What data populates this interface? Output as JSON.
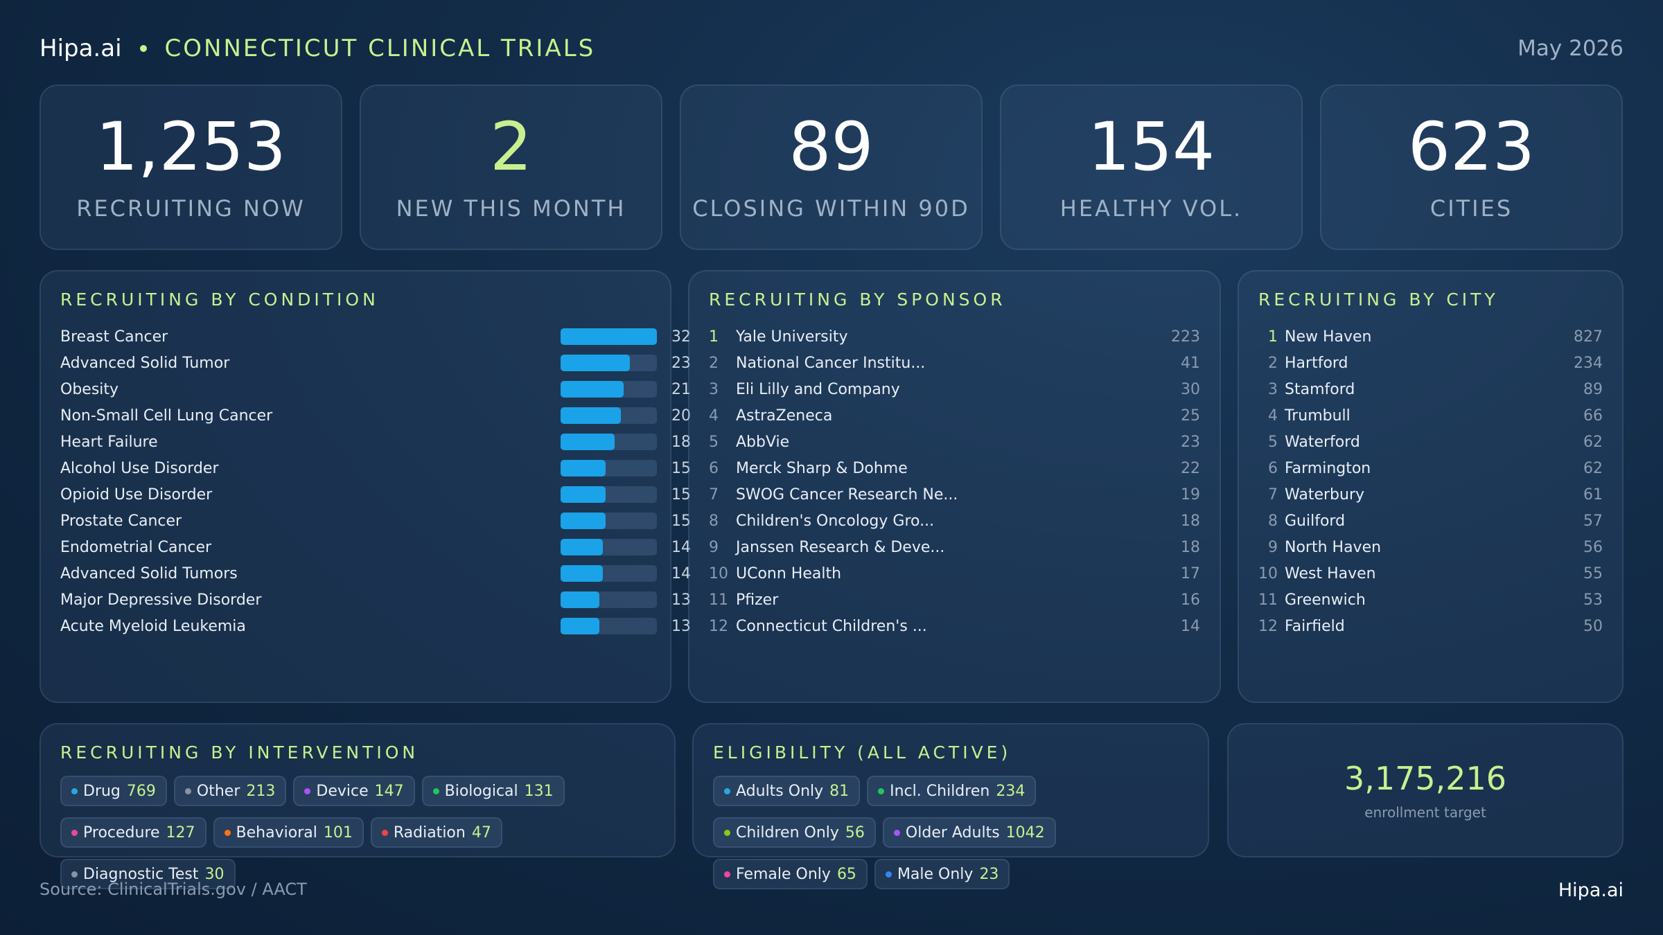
{
  "header": {
    "brand": "Hipa.ai",
    "title": "CONNECTICUT CLINICAL TRIALS",
    "date": "May 2026"
  },
  "kpis": [
    {
      "value": "1,253",
      "label": "RECRUITING NOW"
    },
    {
      "value": "2",
      "label": "NEW THIS MONTH"
    },
    {
      "value": "89",
      "label": "CLOSING WITHIN 90D"
    },
    {
      "value": "154",
      "label": "HEALTHY VOL."
    },
    {
      "value": "623",
      "label": "CITIES"
    }
  ],
  "conditions": {
    "title": "RECRUITING BY CONDITION",
    "color": "#1aa3e8",
    "rows": [
      {
        "name": "Breast Cancer",
        "value": 32
      },
      {
        "name": "Advanced Solid Tumor",
        "value": 23
      },
      {
        "name": "Obesity",
        "value": 21
      },
      {
        "name": "Non-Small Cell Lung Cancer",
        "value": 20
      },
      {
        "name": "Heart Failure",
        "value": 18
      },
      {
        "name": "Alcohol Use Disorder",
        "value": 15
      },
      {
        "name": "Opioid Use Disorder",
        "value": 15
      },
      {
        "name": "Prostate Cancer",
        "value": 15
      },
      {
        "name": "Endometrial Cancer",
        "value": 14
      },
      {
        "name": "Advanced Solid Tumors",
        "value": 14
      },
      {
        "name": "Major Depressive Disorder",
        "value": 13
      },
      {
        "name": "Acute Myeloid Leukemia",
        "value": 13
      }
    ]
  },
  "sponsors": {
    "title": "RECRUITING BY SPONSOR",
    "rows": [
      {
        "rank": 1,
        "name": "Yale University",
        "value": 223
      },
      {
        "rank": 2,
        "name": "National Cancer Institu...",
        "value": 41
      },
      {
        "rank": 3,
        "name": "Eli Lilly and Company",
        "value": 30
      },
      {
        "rank": 4,
        "name": "AstraZeneca",
        "value": 25
      },
      {
        "rank": 5,
        "name": "AbbVie",
        "value": 23
      },
      {
        "rank": 6,
        "name": "Merck Sharp & Dohme",
        "value": 22
      },
      {
        "rank": 7,
        "name": "SWOG Cancer Research Ne...",
        "value": 19
      },
      {
        "rank": 8,
        "name": "Children's Oncology Gro...",
        "value": 18
      },
      {
        "rank": 9,
        "name": "Janssen Research & Deve...",
        "value": 18
      },
      {
        "rank": 10,
        "name": "UConn Health",
        "value": 17
      },
      {
        "rank": 11,
        "name": "Pfizer",
        "value": 16
      },
      {
        "rank": 12,
        "name": "Connecticut Children's ...",
        "value": 14
      }
    ]
  },
  "cities": {
    "title": "RECRUITING BY CITY",
    "rows": [
      {
        "rank": 1,
        "name": "New Haven",
        "value": 827
      },
      {
        "rank": 2,
        "name": "Hartford",
        "value": 234
      },
      {
        "rank": 3,
        "name": "Stamford",
        "value": 89
      },
      {
        "rank": 4,
        "name": "Trumbull",
        "value": 66
      },
      {
        "rank": 5,
        "name": "Waterford",
        "value": 62
      },
      {
        "rank": 6,
        "name": "Farmington",
        "value": 62
      },
      {
        "rank": 7,
        "name": "Waterbury",
        "value": 61
      },
      {
        "rank": 8,
        "name": "Guilford",
        "value": 57
      },
      {
        "rank": 9,
        "name": "North Haven",
        "value": 56
      },
      {
        "rank": 10,
        "name": "West Haven",
        "value": 55
      },
      {
        "rank": 11,
        "name": "Greenwich",
        "value": 53
      },
      {
        "rank": 12,
        "name": "Fairfield",
        "value": 50
      }
    ]
  },
  "interventions": {
    "title": "RECRUITING BY INTERVENTION",
    "items": [
      {
        "name": "Drug",
        "value": 769,
        "color": "#29a8e0"
      },
      {
        "name": "Other",
        "value": 213,
        "color": "#8a94a0"
      },
      {
        "name": "Device",
        "value": 147,
        "color": "#a855f7"
      },
      {
        "name": "Biological",
        "value": 131,
        "color": "#22c55e"
      },
      {
        "name": "Procedure",
        "value": 127,
        "color": "#ec4899"
      },
      {
        "name": "Behavioral",
        "value": 101,
        "color": "#f97316"
      },
      {
        "name": "Radiation",
        "value": 47,
        "color": "#ef4444"
      },
      {
        "name": "Diagnostic Test",
        "value": 30,
        "color": "#8a94a0"
      }
    ]
  },
  "eligibility": {
    "title": "ELIGIBILITY (ALL ACTIVE)",
    "items": [
      {
        "name": "Adults Only",
        "value": 81,
        "color": "#29a8e0"
      },
      {
        "name": "Incl. Children",
        "value": 234,
        "color": "#22c55e"
      },
      {
        "name": "Children Only",
        "value": 56,
        "color": "#84cc16"
      },
      {
        "name": "Older Adults",
        "value": 1042,
        "color": "#a855f7"
      },
      {
        "name": "Female Only",
        "value": 65,
        "color": "#ec4899"
      },
      {
        "name": "Male Only",
        "value": 23,
        "color": "#3b82f6"
      }
    ]
  },
  "enrollment": {
    "value": "3,175,216",
    "label": "enrollment target"
  },
  "footer": {
    "source": "Source: ClinicalTrials.gov / AACT",
    "brand": "Hipa.ai"
  }
}
